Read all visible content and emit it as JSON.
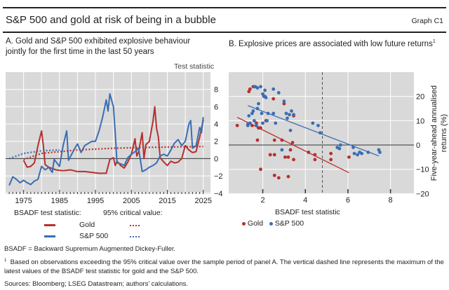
{
  "header": {
    "title": "S&P 500 and gold at risk of being in a bubble",
    "graph_id": "Graph C1"
  },
  "colors": {
    "gold": "#b5302e",
    "sp500": "#3b6db3",
    "plot_bg": "#d9d9d9",
    "grid": "#ffffff"
  },
  "panel_a": {
    "title_line1": "A. Gold and S&P 500 exhibited explosive behaviour",
    "title_line2": "jointly for the first time in the last 50 years",
    "axis_unit": "Test statistic",
    "legend": {
      "bsadf_heading": "BSADF test statistic:",
      "critical_heading": "95% critical value:",
      "gold": "Gold",
      "sp500": "S&P 500"
    }
  },
  "panel_b": {
    "title": "B. Explosive prices are associated with low future returns",
    "title_sup": "1",
    "legend": {
      "gold": "Gold",
      "sp500": "S&P 500"
    }
  },
  "notes": {
    "abbrev": "BSADF = Backward Supremum Augmented Dickey-Fuller.",
    "footnote_mark": "1",
    "footnote": "Based on observations exceeding the 95% critical value over the sample period of panel A. The vertical dashed line represents the maximum of the latest values of the BSADF test statistic for gold and the S&P 500.",
    "sources": "Sources: Bloomberg; LSEG Datastream; authors’ calculations."
  },
  "chart_data": [
    {
      "type": "line",
      "title": "A. Gold and S&P 500 exhibited explosive behaviour jointly for the first time in the last 50 years",
      "ylabel": "Test statistic",
      "xlim": [
        1970,
        2027
      ],
      "ylim": [
        -4.1,
        10
      ],
      "xticks": [
        "1975",
        "1985",
        "1995",
        "2005",
        "2015",
        "2025"
      ],
      "yticks": [
        "-4",
        "-2",
        "0",
        "2",
        "4",
        "6",
        "8"
      ],
      "series": [
        {
          "name": "Gold BSADF test statistic",
          "style": "solid",
          "color": "#b5302e",
          "points": [
            [
              1975,
              -0.2
            ],
            [
              1976,
              -1.0
            ],
            [
              1977,
              -0.9
            ],
            [
              1978,
              -0.5
            ],
            [
              1979,
              1.5
            ],
            [
              1980,
              3.2
            ],
            [
              1980.5,
              1.5
            ],
            [
              1981,
              -0.7
            ],
            [
              1982,
              -1.0
            ],
            [
              1984,
              -1.3
            ],
            [
              1986,
              -1.4
            ],
            [
              1988,
              -1.3
            ],
            [
              1990,
              -1.5
            ],
            [
              1992,
              -1.5
            ],
            [
              1994,
              -1.6
            ],
            [
              1996,
              -1.7
            ],
            [
              1998,
              -1.7
            ],
            [
              1999,
              -0.1
            ],
            [
              2000,
              0.1
            ],
            [
              2000.5,
              -0.8
            ],
            [
              2001,
              -0.3
            ],
            [
              2002,
              -0.8
            ],
            [
              2003,
              -1.1
            ],
            [
              2004,
              -0.4
            ],
            [
              2005,
              0.5
            ],
            [
              2006,
              2.3
            ],
            [
              2006.5,
              0.3
            ],
            [
              2007,
              0.8
            ],
            [
              2008,
              3.0
            ],
            [
              2008.5,
              0.0
            ],
            [
              2009,
              1.6
            ],
            [
              2010,
              2.0
            ],
            [
              2011,
              4.3
            ],
            [
              2011.5,
              6.0
            ],
            [
              2012,
              3.5
            ],
            [
              2012.5,
              2.5
            ],
            [
              2013,
              0.1
            ],
            [
              2014,
              -0.4
            ],
            [
              2015,
              -0.8
            ],
            [
              2016,
              -0.3
            ],
            [
              2017,
              -0.5
            ],
            [
              2018,
              -0.4
            ],
            [
              2019,
              0.0
            ],
            [
              2020,
              1.5
            ],
            [
              2021,
              1.0
            ],
            [
              2022,
              0.7
            ],
            [
              2023,
              0.8
            ],
            [
              2024,
              2.5
            ],
            [
              2025,
              4.5
            ]
          ]
        },
        {
          "name": "S&P 500 BSADF test statistic",
          "style": "solid",
          "color": "#3b6db3",
          "points": [
            [
              1971,
              -3.1
            ],
            [
              1972,
              -2.1
            ],
            [
              1973,
              -2.4
            ],
            [
              1974,
              -2.8
            ],
            [
              1975,
              -2.5
            ],
            [
              1976,
              -2.8
            ],
            [
              1977,
              -3.0
            ],
            [
              1978,
              -2.6
            ],
            [
              1979,
              -2.4
            ],
            [
              1980,
              -0.9
            ],
            [
              1981,
              -1.3
            ],
            [
              1982,
              -1.0
            ],
            [
              1983,
              -1.6
            ],
            [
              1983.5,
              -0.1
            ],
            [
              1985,
              -0.9
            ],
            [
              1986,
              1.5
            ],
            [
              1987,
              3.2
            ],
            [
              1987.5,
              -0.2
            ],
            [
              1989,
              1.0
            ],
            [
              1990,
              1.7
            ],
            [
              1991,
              0.7
            ],
            [
              1992,
              1.5
            ],
            [
              1994,
              2.0
            ],
            [
              1995,
              2.0
            ],
            [
              1996,
              3.2
            ],
            [
              1997,
              4.8
            ],
            [
              1998,
              6.8
            ],
            [
              1998.5,
              5.5
            ],
            [
              1999,
              7.5
            ],
            [
              2000,
              6.0
            ],
            [
              2000.5,
              3.0
            ],
            [
              2001,
              -0.5
            ],
            [
              2002,
              -0.6
            ],
            [
              2003,
              -0.8
            ],
            [
              2004,
              0.1
            ],
            [
              2005,
              0.5
            ],
            [
              2006,
              0.8
            ],
            [
              2007,
              1.2
            ],
            [
              2008,
              -1.5
            ],
            [
              2009,
              -1.3
            ],
            [
              2010,
              -1.0
            ],
            [
              2011,
              -0.8
            ],
            [
              2012,
              -0.5
            ],
            [
              2013,
              0.3
            ],
            [
              2014,
              0.5
            ],
            [
              2015,
              0.3
            ],
            [
              2016,
              1.0
            ],
            [
              2017,
              1.8
            ],
            [
              2018,
              2.2
            ],
            [
              2019,
              1.5
            ],
            [
              2020,
              2.0
            ],
            [
              2021,
              4.0
            ],
            [
              2021.5,
              4.4
            ],
            [
              2022,
              1.2
            ],
            [
              2023,
              1.5
            ],
            [
              2024,
              3.6
            ],
            [
              2024.5,
              3.0
            ],
            [
              2025,
              4.8
            ]
          ]
        },
        {
          "name": "Gold 95% critical value",
          "style": "dotted",
          "color": "#b5302e",
          "points": [
            [
              1975,
              -0.1
            ],
            [
              1980,
              0.6
            ],
            [
              1990,
              1.0
            ],
            [
              2000,
              1.2
            ],
            [
              2010,
              1.3
            ],
            [
              2025,
              1.4
            ]
          ]
        },
        {
          "name": "S&P 500 95% critical value",
          "style": "dotted",
          "color": "#3b6db3",
          "points": [
            [
              1971,
              0.0
            ],
            [
              1975,
              0.6
            ],
            [
              1980,
              0.9
            ],
            [
              1985,
              1.0
            ]
          ]
        }
      ]
    },
    {
      "type": "scatter",
      "title": "B. Explosive prices are associated with low future returns",
      "xlabel": "BSADF test statistic",
      "ylabel": "Five-year-ahead annualised returns (%)",
      "xlim": [
        0.4,
        9.1
      ],
      "ylim": [
        -20,
        30
      ],
      "xticks": [
        "2",
        "4",
        "6",
        "8"
      ],
      "yticks": [
        "-20",
        "-10",
        "0",
        "10",
        "20"
      ],
      "vline": 4.8,
      "series": [
        {
          "name": "Gold",
          "color": "#b5302e",
          "points": [
            [
              0.8,
              8
            ],
            [
              1.35,
              22
            ],
            [
              1.4,
              23
            ],
            [
              1.55,
              24
            ],
            [
              1.5,
              8
            ],
            [
              1.7,
              9
            ],
            [
              1.75,
              2
            ],
            [
              1.8,
              7
            ],
            [
              1.9,
              7
            ],
            [
              1.9,
              -10
            ],
            [
              2.1,
              20
            ],
            [
              2.15,
              10
            ],
            [
              2.5,
              19
            ],
            [
              2.55,
              2
            ],
            [
              2.55,
              -4
            ],
            [
              2.35,
              -4
            ],
            [
              2.55,
              -12.5
            ],
            [
              2.75,
              -13.5
            ],
            [
              2.9,
              2
            ],
            [
              3.0,
              17
            ],
            [
              3.05,
              -5
            ],
            [
              3.2,
              -5
            ],
            [
              3.2,
              -13
            ],
            [
              3.3,
              -2
            ],
            [
              3.4,
              1
            ],
            [
              3.45,
              12
            ],
            [
              3.45,
              -6
            ],
            [
              4.15,
              -3
            ],
            [
              4.45,
              -4
            ],
            [
              4.45,
              -6
            ],
            [
              5.2,
              -6
            ],
            [
              5.2,
              -3.5
            ],
            [
              6.05,
              -5
            ]
          ],
          "fit": [
            [
              0.8,
              11.4
            ],
            [
              6.05,
              -11.4
            ]
          ]
        },
        {
          "name": "S&P 500",
          "color": "#3b6db3",
          "points": [
            [
              1.3,
              8
            ],
            [
              1.35,
              12
            ],
            [
              1.4,
              9
            ],
            [
              1.5,
              13
            ],
            [
              1.55,
              14
            ],
            [
              1.6,
              10
            ],
            [
              1.6,
              24
            ],
            [
              1.65,
              24
            ],
            [
              1.75,
              23.5
            ],
            [
              1.75,
              15
            ],
            [
              1.8,
              17
            ],
            [
              1.9,
              24
            ],
            [
              1.95,
              13
            ],
            [
              2.0,
              21
            ],
            [
              2.0,
              9
            ],
            [
              2.05,
              20
            ],
            [
              2.1,
              22.5
            ],
            [
              2.15,
              19.5
            ],
            [
              2.2,
              10
            ],
            [
              2.25,
              13
            ],
            [
              2.5,
              23
            ],
            [
              2.5,
              13
            ],
            [
              2.6,
              9
            ],
            [
              2.75,
              21.5
            ],
            [
              2.9,
              -2
            ],
            [
              3.0,
              18
            ],
            [
              3.1,
              13
            ],
            [
              3.15,
              11
            ],
            [
              3.25,
              12.5
            ],
            [
              3.3,
              6
            ],
            [
              3.35,
              14
            ],
            [
              3.45,
              12.5
            ],
            [
              4.35,
              9
            ],
            [
              4.6,
              8
            ],
            [
              4.7,
              5
            ],
            [
              5.5,
              -1
            ],
            [
              5.6,
              -1.5
            ],
            [
              5.65,
              0
            ],
            [
              6.25,
              -1
            ],
            [
              6.3,
              -3.5
            ],
            [
              6.45,
              -4
            ],
            [
              6.55,
              -3
            ],
            [
              6.65,
              -3.5
            ],
            [
              6.95,
              -3
            ],
            [
              7.45,
              -2
            ],
            [
              7.5,
              -3
            ],
            [
              1.3,
              8.5
            ],
            [
              1.7,
              8
            ]
          ],
          "fit": [
            [
              1.3,
              16.2
            ],
            [
              7.45,
              -4.5
            ]
          ]
        }
      ]
    }
  ]
}
